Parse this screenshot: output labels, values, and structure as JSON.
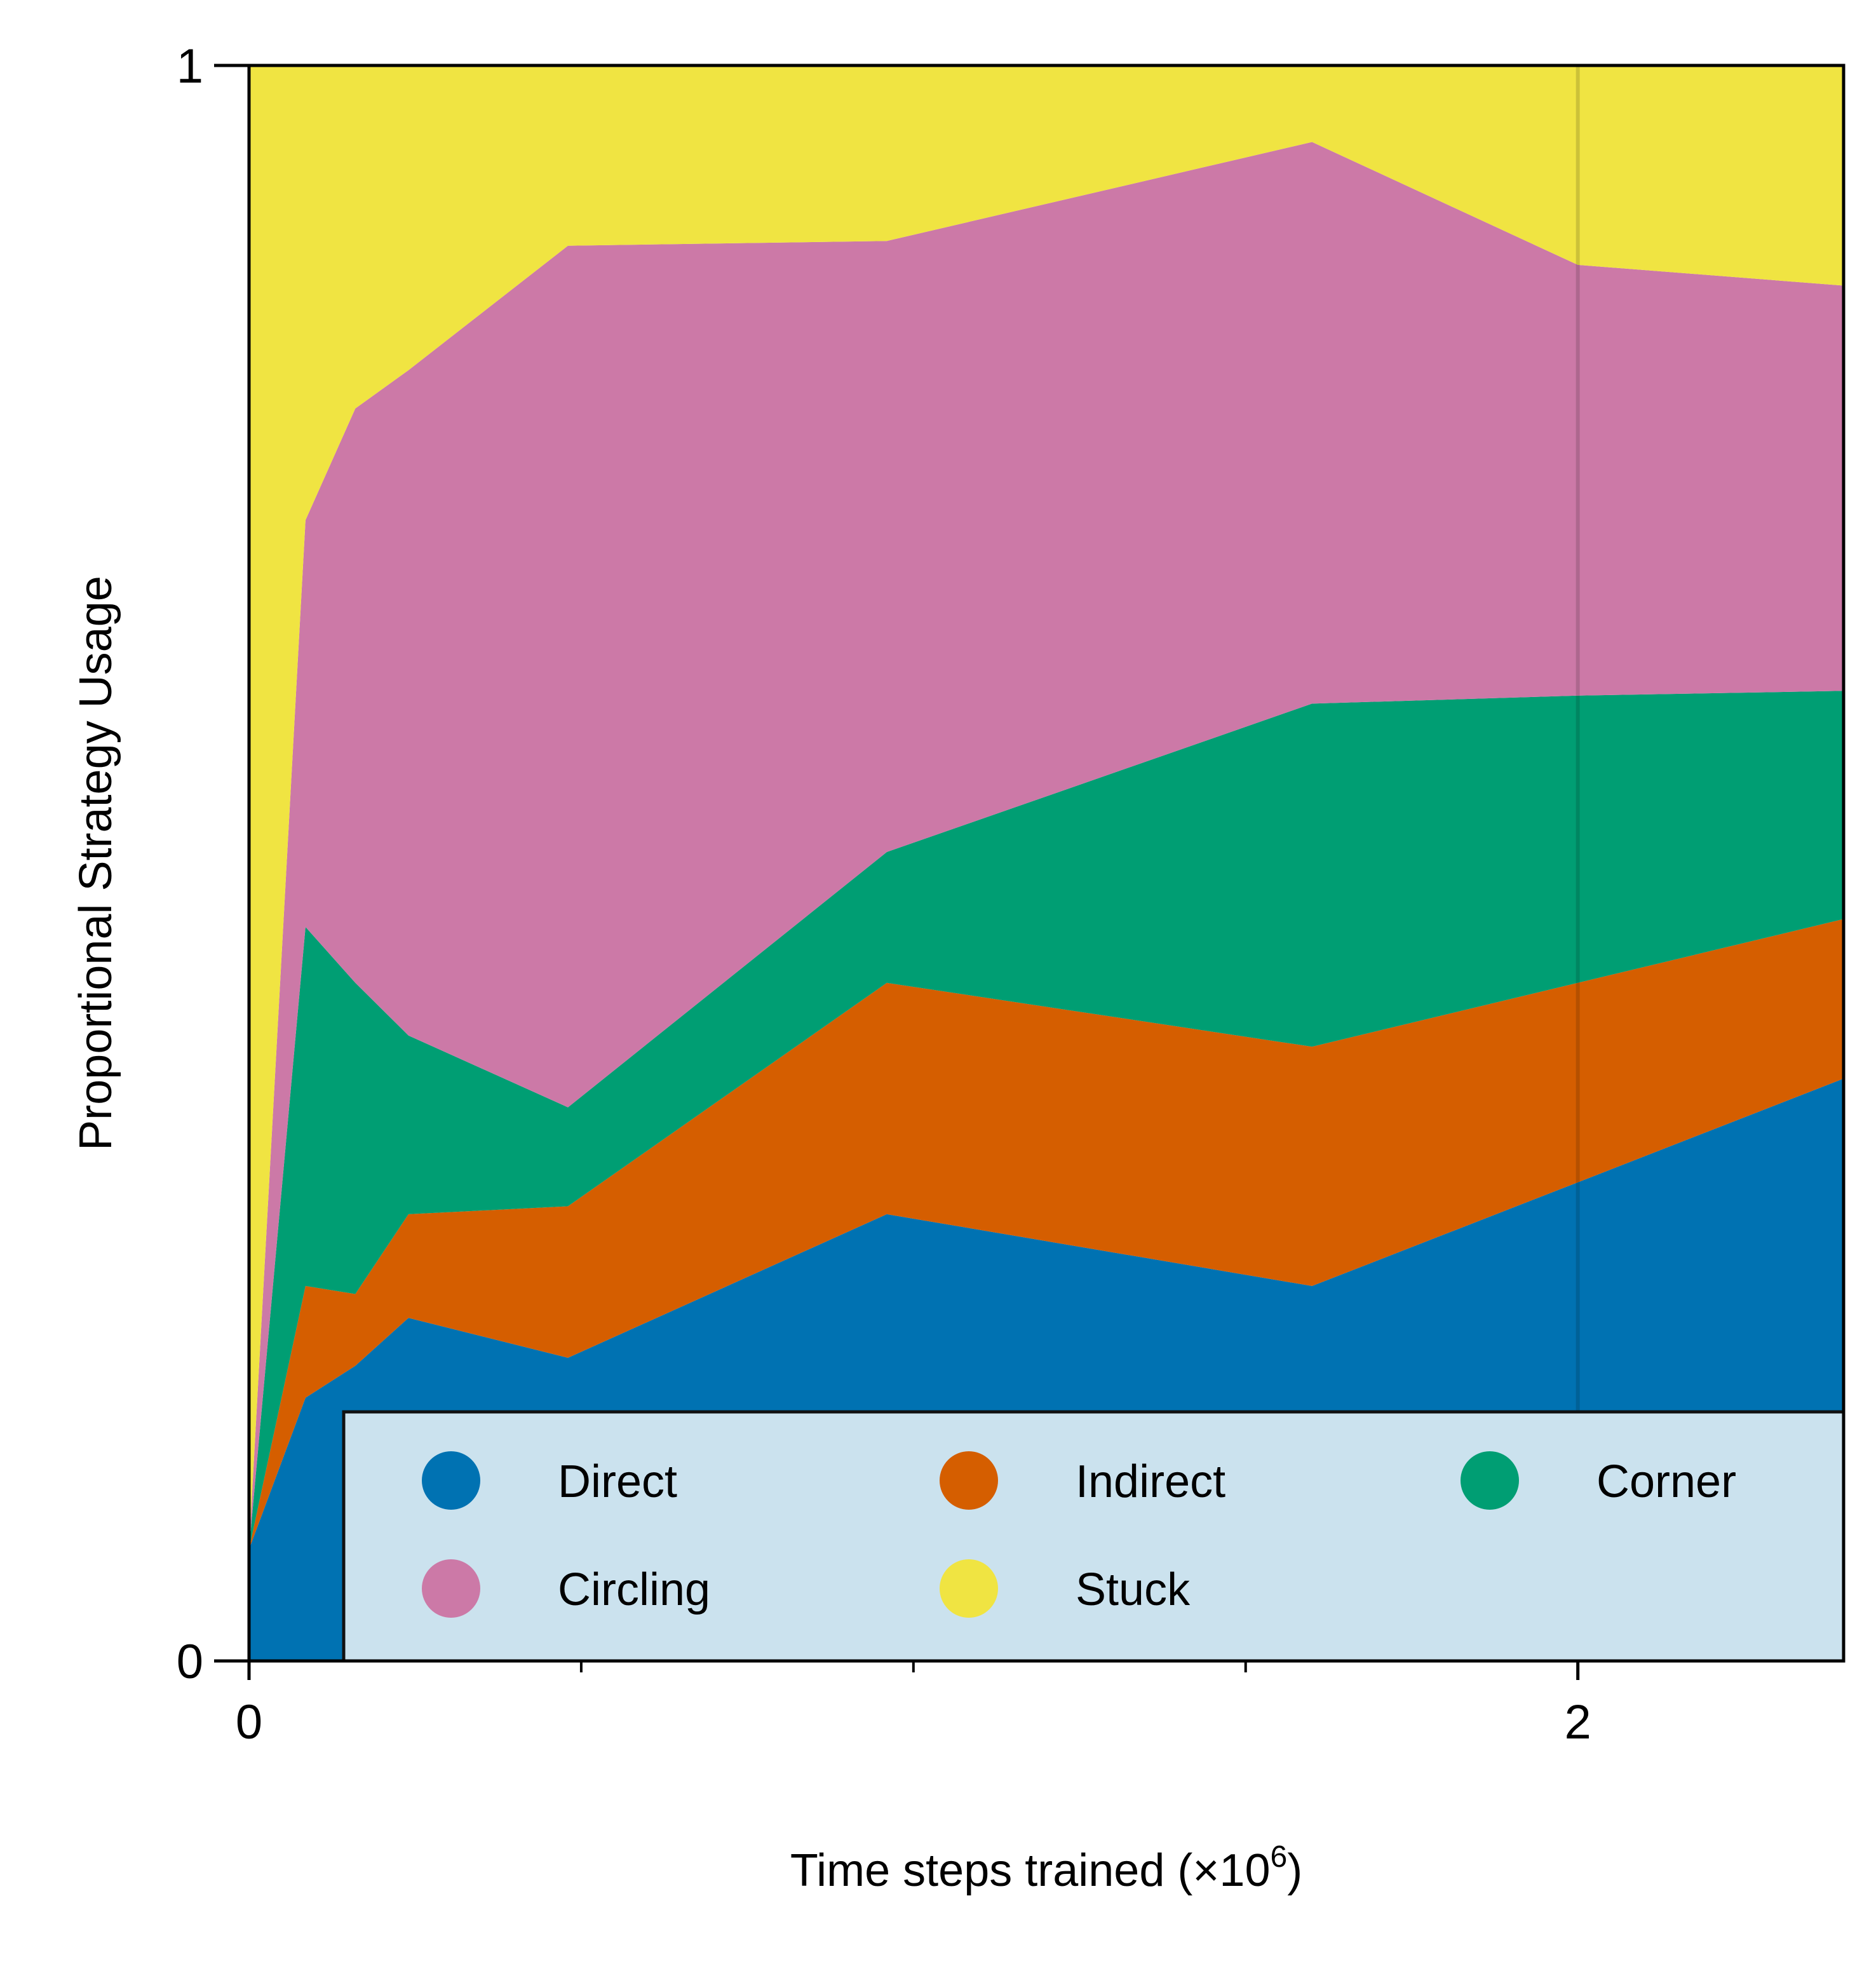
{
  "chart_data": {
    "type": "area",
    "stacked": true,
    "xlabel_main": "Time steps trained (×10",
    "xlabel_exp": "6",
    "xlabel_close": ")",
    "ylabel": "Proportional Strategy Usage",
    "xlim": [
      0,
      2.4
    ],
    "ylim": [
      0,
      1
    ],
    "xticks": [
      {
        "value": 0,
        "label": "0"
      },
      {
        "value": 2,
        "label": "2"
      }
    ],
    "xminor": [
      0.5,
      1.0,
      1.5
    ],
    "yticks": [
      {
        "value": 0,
        "label": "0"
      },
      {
        "value": 1,
        "label": "1"
      }
    ],
    "vline_x": 2.0,
    "legend_position": "bottom-right",
    "x": [
      0,
      0.085,
      0.16,
      0.24,
      0.48,
      0.96,
      1.6,
      2.0,
      2.4
    ],
    "series": [
      {
        "name": "Direct",
        "color": "#0072B2",
        "values": [
          0.07,
          0.165,
          0.185,
          0.215,
          0.19,
          0.28,
          0.235,
          0.3,
          0.365
        ]
      },
      {
        "name": "Indirect",
        "color": "#D55E00",
        "values": [
          0.0,
          0.07,
          0.045,
          0.065,
          0.095,
          0.145,
          0.15,
          0.125,
          0.1
        ]
      },
      {
        "name": "Corner",
        "color": "#009E73",
        "values": [
          0.0,
          0.225,
          0.195,
          0.112,
          0.062,
          0.082,
          0.215,
          0.18,
          0.143
        ]
      },
      {
        "name": "Circling",
        "color": "#CC79A7",
        "values": [
          0.0,
          0.255,
          0.36,
          0.417,
          0.54,
          0.383,
          0.352,
          0.27,
          0.254
        ]
      },
      {
        "name": "Stuck",
        "color": "#F0E442",
        "values": [
          0.93,
          0.285,
          0.215,
          0.191,
          0.113,
          0.11,
          0.048,
          0.125,
          0.138
        ]
      }
    ]
  }
}
